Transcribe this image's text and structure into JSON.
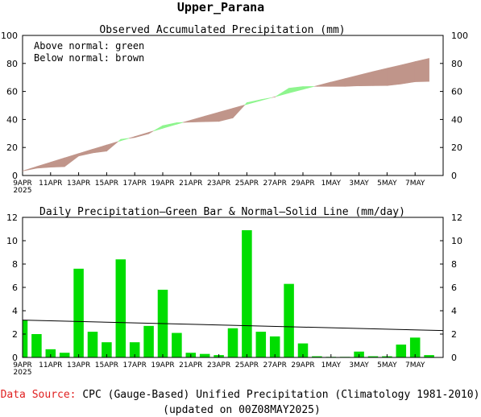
{
  "title": "Upper_Parana",
  "colors": {
    "above": "#8ef58e",
    "below": "#c0958a",
    "bar": "#00dd00",
    "source_label": "#e02020"
  },
  "chart_data": [
    {
      "type": "area",
      "title": "Observed Accumulated Precipitation (mm)",
      "legend": [
        "Above normal: green",
        "Below normal: brown"
      ],
      "x_tick_labels": [
        "9APR\n2025",
        "11APR",
        "13APR",
        "15APR",
        "17APR",
        "19APR",
        "21APR",
        "23APR",
        "25APR",
        "27APR",
        "29APR",
        "1MAY",
        "3MAY",
        "5MAY",
        "7MAY"
      ],
      "ylim": [
        0,
        100
      ],
      "y_ticks": [
        0,
        20,
        40,
        60,
        80,
        100
      ],
      "days": [
        "9APR",
        "10APR",
        "11APR",
        "12APR",
        "13APR",
        "14APR",
        "15APR",
        "16APR",
        "17APR",
        "18APR",
        "19APR",
        "20APR",
        "21APR",
        "22APR",
        "23APR",
        "24APR",
        "25APR",
        "26APR",
        "27APR",
        "28APR",
        "29APR",
        "30APR",
        "1MAY",
        "2MAY",
        "3MAY",
        "4MAY",
        "5MAY",
        "6MAY",
        "7MAY",
        "8MAY"
      ],
      "observed": [
        3.2,
        5.2,
        5.9,
        6.3,
        13.9,
        16.1,
        17.4,
        25.8,
        27.1,
        29.8,
        35.6,
        37.7,
        38.1,
        38.4,
        38.6,
        41.1,
        52.0,
        54.2,
        56.0,
        62.3,
        63.5,
        63.6,
        63.6,
        63.6,
        64.0,
        64.1,
        64.2,
        65.3,
        66.9,
        67.1
      ],
      "normal": [
        3.2,
        6.4,
        9.5,
        12.6,
        15.7,
        18.8,
        21.8,
        24.8,
        27.8,
        30.8,
        33.7,
        36.6,
        39.5,
        42.4,
        45.2,
        48.0,
        50.8,
        53.5,
        56.2,
        58.9,
        61.5,
        64.1,
        66.7,
        69.2,
        71.7,
        74.2,
        76.6,
        78.9,
        81.3,
        83.6
      ]
    },
    {
      "type": "bar",
      "title": "Daily Precipitation–Green Bar & Normal–Solid Line (mm/day)",
      "x_tick_labels": [
        "9APR\n2025",
        "11APR",
        "13APR",
        "15APR",
        "17APR",
        "19APR",
        "21APR",
        "23APR",
        "25APR",
        "27APR",
        "29APR",
        "1MAY",
        "3MAY",
        "5MAY",
        "7MAY"
      ],
      "ylim": [
        0,
        12
      ],
      "y_ticks": [
        0,
        2,
        4,
        6,
        8,
        10,
        12
      ],
      "days": [
        "9APR",
        "10APR",
        "11APR",
        "12APR",
        "13APR",
        "14APR",
        "15APR",
        "16APR",
        "17APR",
        "18APR",
        "19APR",
        "20APR",
        "21APR",
        "22APR",
        "23APR",
        "24APR",
        "25APR",
        "26APR",
        "27APR",
        "28APR",
        "29APR",
        "30APR",
        "1MAY",
        "2MAY",
        "3MAY",
        "4MAY",
        "5MAY",
        "6MAY",
        "7MAY",
        "8MAY"
      ],
      "values": [
        3.2,
        2.0,
        0.7,
        0.4,
        7.6,
        2.2,
        1.3,
        8.4,
        1.3,
        2.7,
        5.8,
        2.1,
        0.4,
        0.3,
        0.2,
        2.5,
        10.9,
        2.2,
        1.8,
        6.3,
        1.2,
        0.1,
        0.05,
        0.05,
        0.5,
        0.1,
        0.1,
        1.1,
        1.7,
        0.2
      ],
      "normal": [
        3.2,
        2.3
      ],
      "normal_label": ""
    }
  ],
  "footer": {
    "source_label": "Data Source:",
    "source_text": " CPC (Gauge-Based) Unified Precipitation (Climatology 1981-2010)",
    "updated": "(updated on 00Z08MAY2025)"
  }
}
